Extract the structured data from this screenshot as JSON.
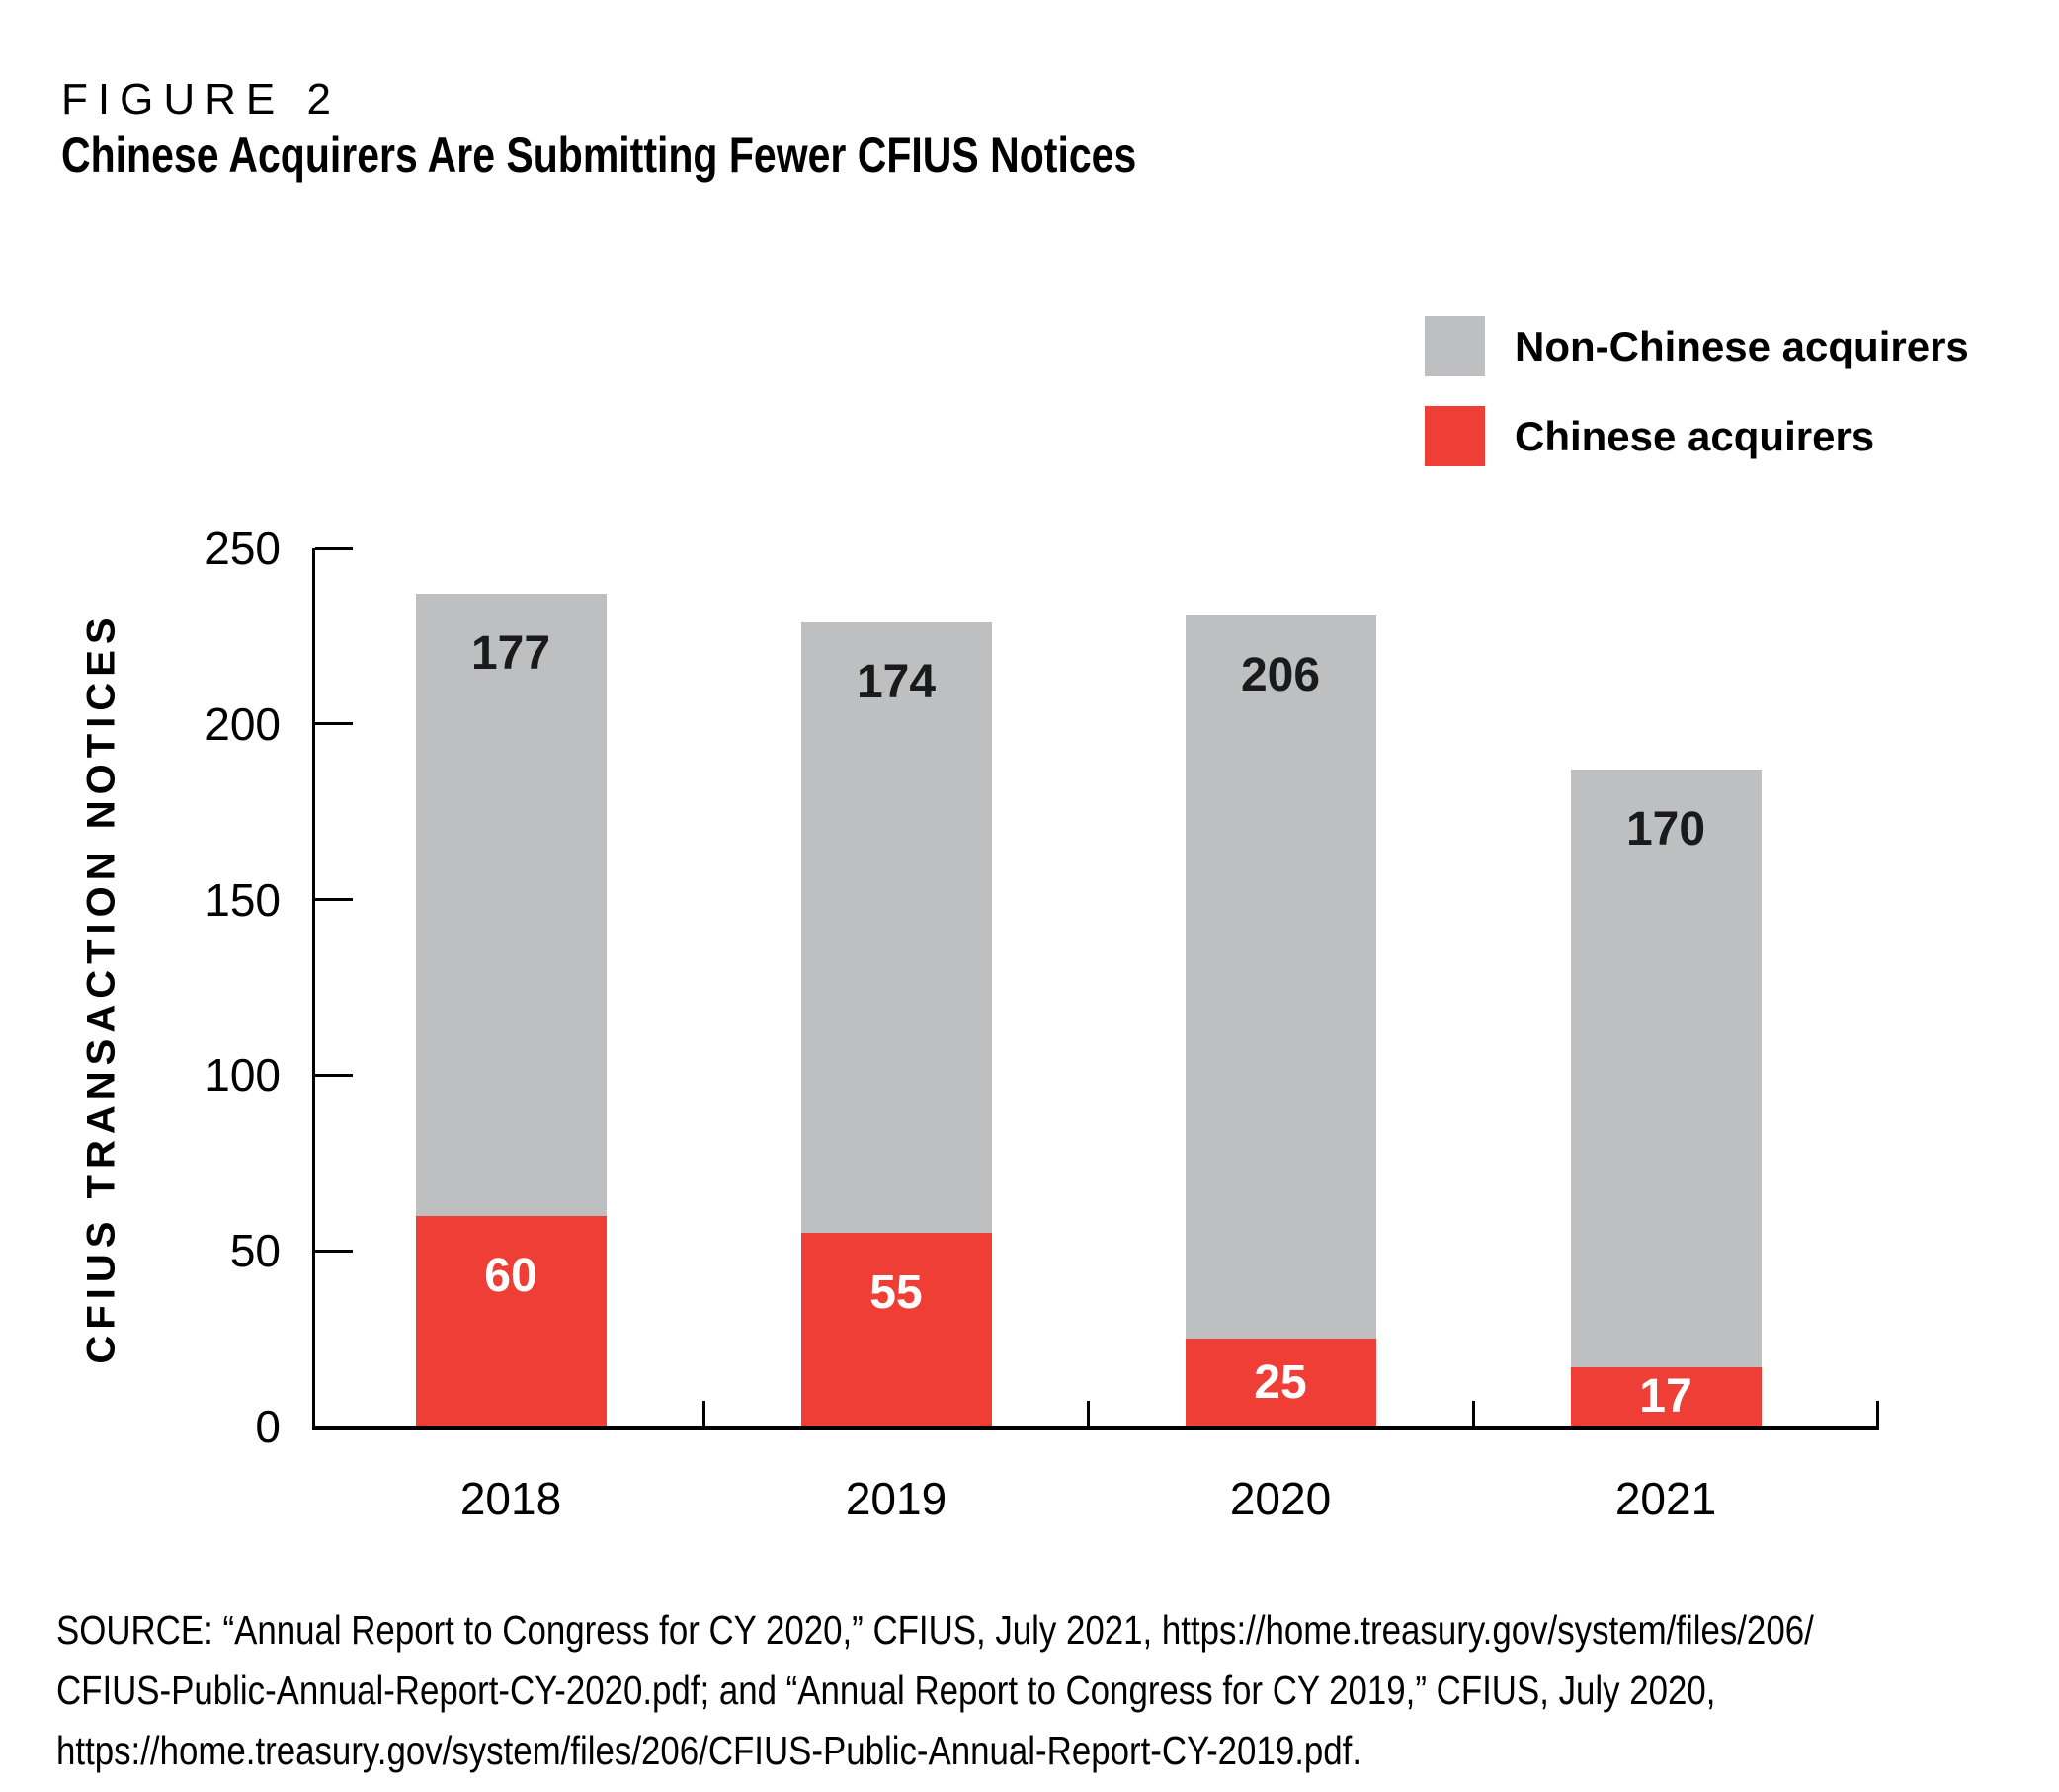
{
  "figure": {
    "label": "FIGURE 2",
    "title": "Chinese Acquirers Are Submitting Fewer CFIUS Notices"
  },
  "legend": {
    "items": [
      {
        "label": "Non-Chinese acquirers",
        "color": "#bdbfc1"
      },
      {
        "label": "Chinese acquirers",
        "color": "#ee3e36"
      }
    ]
  },
  "chart_data": {
    "type": "bar",
    "stacked": true,
    "categories": [
      "2018",
      "2019",
      "2020",
      "2021"
    ],
    "series": [
      {
        "name": "Chinese acquirers",
        "color": "#ee3e36",
        "label_color": "#ffffff",
        "values": [
          60,
          55,
          25,
          17
        ]
      },
      {
        "name": "Non-Chinese acquirers",
        "color": "#bdbfc1",
        "label_color": "#1a1a1a",
        "values": [
          177,
          174,
          206,
          170
        ]
      }
    ],
    "title": "Chinese Acquirers Are Submitting Fewer CFIUS Notices",
    "xlabel": "",
    "ylabel": "CFIUS TRANSACTION NOTICES",
    "ylim": [
      0,
      250
    ],
    "yticks": [
      0,
      50,
      100,
      150,
      200,
      250
    ],
    "grid": false,
    "legend_position": "top-right",
    "bar_value_labels": true,
    "axis_color": "#000000"
  },
  "source": {
    "lines": [
      "SOURCE: “Annual Report to Congress for CY 2020,” CFIUS, July 2021, https://home.treasury.gov/system/files/206/",
      "CFIUS-Public-Annual-Report-CY-2020.pdf; and “Annual Report to Congress for CY 2019,” CFIUS, July 2020,",
      "https://home.treasury.gov/system/files/206/CFIUS-Public-Annual-Report-CY-2019.pdf."
    ]
  }
}
